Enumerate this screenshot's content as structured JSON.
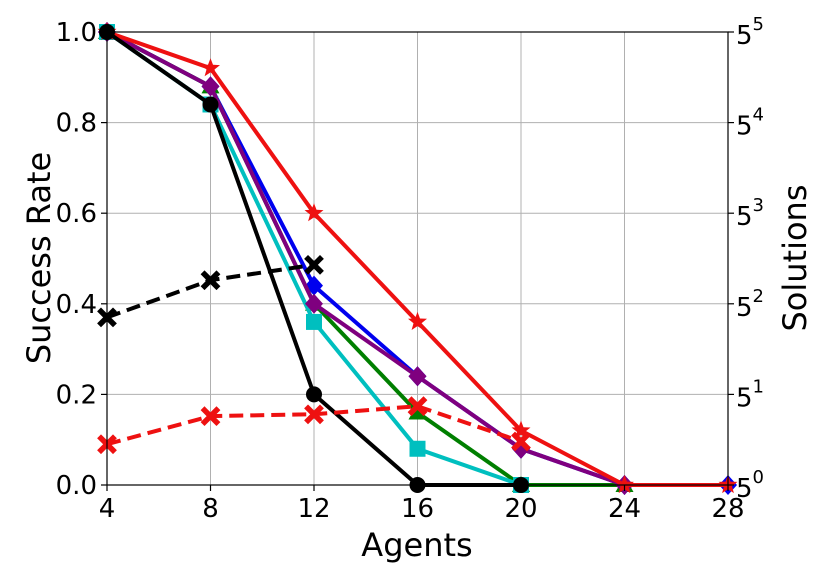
{
  "chart_data": {
    "type": "line",
    "xlabel": "Agents",
    "ylabel": "Success Rate",
    "y2label": "Solutions",
    "x": [
      4,
      8,
      12,
      16,
      20,
      24,
      28
    ],
    "xlim": [
      4,
      28
    ],
    "ylim": [
      0,
      1.0
    ],
    "y2lim_exponent": [
      0,
      5
    ],
    "x_ticks": [
      "4",
      "8",
      "12",
      "16",
      "20",
      "24",
      "28"
    ],
    "y_ticks": [
      "0.0",
      "0.2",
      "0.4",
      "0.6",
      "0.8",
      "1.0"
    ],
    "y2_ticks": [
      {
        "base": "5",
        "exp": "0"
      },
      {
        "base": "5",
        "exp": "1"
      },
      {
        "base": "5",
        "exp": "2"
      },
      {
        "base": "5",
        "exp": "3"
      },
      {
        "base": "5",
        "exp": "4"
      },
      {
        "base": "5",
        "exp": "5"
      }
    ],
    "grid": true,
    "series": [
      {
        "color": "#0000ee",
        "marker": "diamond",
        "dash": false,
        "axis": "left",
        "points": [
          [
            4,
            1.0
          ],
          [
            8,
            0.88
          ],
          [
            12,
            0.44
          ],
          [
            16,
            0.24
          ],
          [
            20,
            0.08
          ],
          [
            24,
            0.0
          ],
          [
            28,
            0.0
          ]
        ]
      },
      {
        "color": "#007f00",
        "marker": "triangle",
        "dash": false,
        "axis": "left",
        "points": [
          [
            4,
            1.0
          ],
          [
            8,
            0.88
          ],
          [
            12,
            0.4
          ],
          [
            16,
            0.16
          ],
          [
            20,
            0.0
          ],
          [
            24,
            0.0
          ]
        ]
      },
      {
        "color": "#00bfbf",
        "marker": "square",
        "dash": false,
        "axis": "left",
        "points": [
          [
            4,
            1.0
          ],
          [
            8,
            0.84
          ],
          [
            12,
            0.36
          ],
          [
            16,
            0.08
          ],
          [
            20,
            0.0
          ]
        ]
      },
      {
        "color": "#7f007f",
        "marker": "diamond",
        "dash": false,
        "axis": "left",
        "points": [
          [
            4,
            1.0
          ],
          [
            8,
            0.88
          ],
          [
            12,
            0.4
          ],
          [
            16,
            0.24
          ],
          [
            20,
            0.08
          ],
          [
            24,
            0.0
          ]
        ]
      },
      {
        "color": "#ee1111",
        "marker": "star",
        "dash": false,
        "axis": "left",
        "points": [
          [
            4,
            1.0
          ],
          [
            8,
            0.92
          ],
          [
            12,
            0.6
          ],
          [
            16,
            0.36
          ],
          [
            20,
            0.12
          ],
          [
            24,
            0.0
          ],
          [
            28,
            0.0
          ]
        ]
      },
      {
        "color": "#000000",
        "marker": "circle",
        "dash": false,
        "axis": "left",
        "points": [
          [
            4,
            1.0
          ],
          [
            8,
            0.84
          ],
          [
            12,
            0.2
          ],
          [
            16,
            0.0
          ],
          [
            20,
            0.0
          ]
        ]
      },
      {
        "color": "#000000",
        "marker": "x",
        "dash": true,
        "axis": "right",
        "points": [
          [
            4,
            1.85
          ],
          [
            8,
            2.26
          ],
          [
            12,
            2.43
          ]
        ]
      },
      {
        "color": "#ee1111",
        "marker": "x",
        "dash": true,
        "axis": "right",
        "points": [
          [
            4,
            0.45
          ],
          [
            8,
            0.76
          ],
          [
            12,
            0.78
          ],
          [
            16,
            0.87
          ],
          [
            20,
            0.48
          ]
        ]
      }
    ]
  }
}
